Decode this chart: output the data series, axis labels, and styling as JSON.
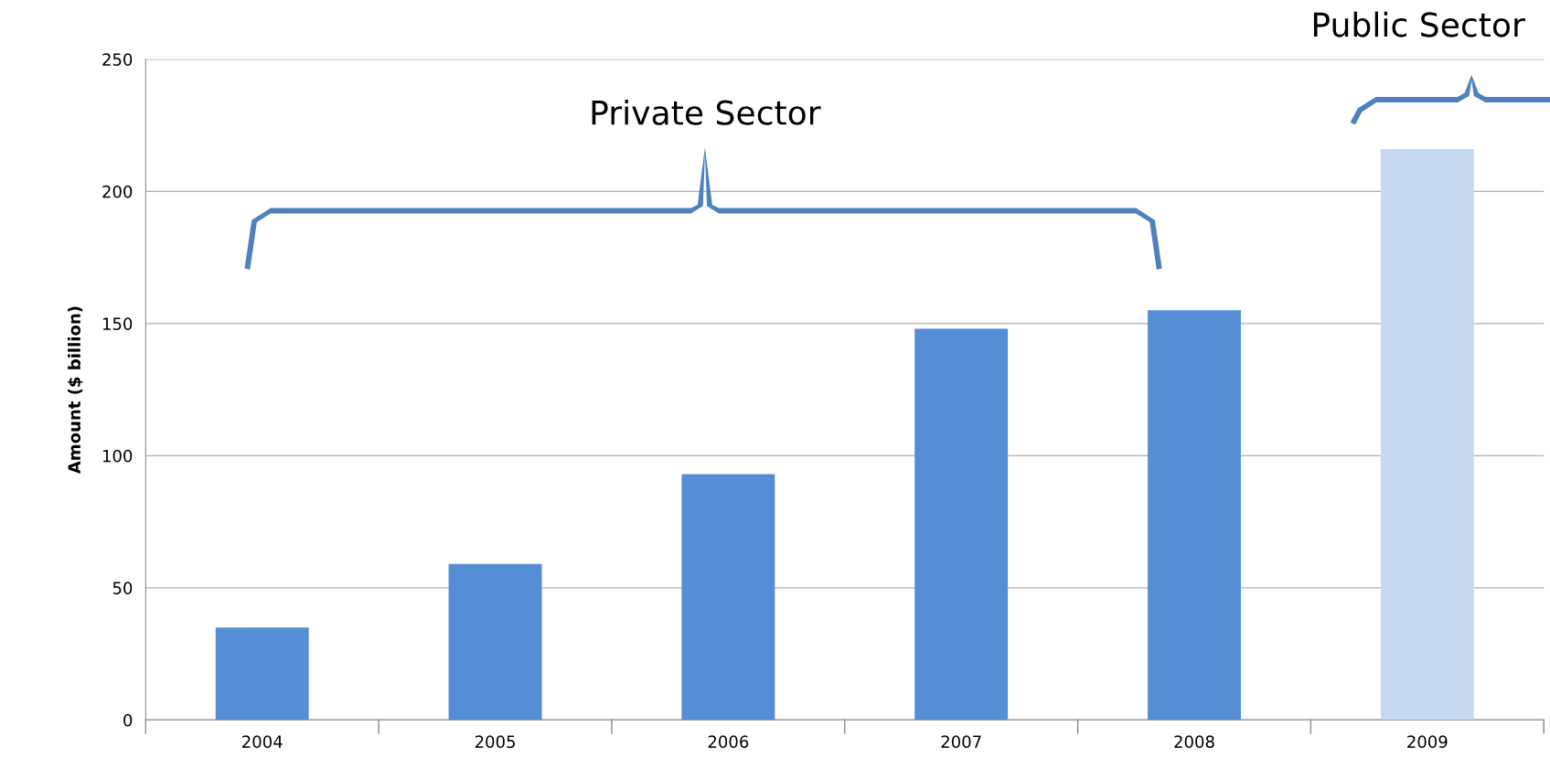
{
  "chart_data": {
    "type": "bar",
    "ylabel": "Amount ($ billion)",
    "categories": [
      "2004",
      "2005",
      "2006",
      "2007",
      "2008",
      "2009"
    ],
    "values": [
      35,
      59,
      93,
      148,
      155,
      216
    ],
    "colors": [
      "#558ed5",
      "#558ed5",
      "#558ed5",
      "#558ed5",
      "#558ed5",
      "#c6d9f1"
    ],
    "ylim": [
      0,
      250
    ],
    "yticks": [
      0,
      50,
      100,
      150,
      200,
      250
    ],
    "grid": "y",
    "annotations": [
      "Private Sector",
      "Public Sector"
    ]
  }
}
